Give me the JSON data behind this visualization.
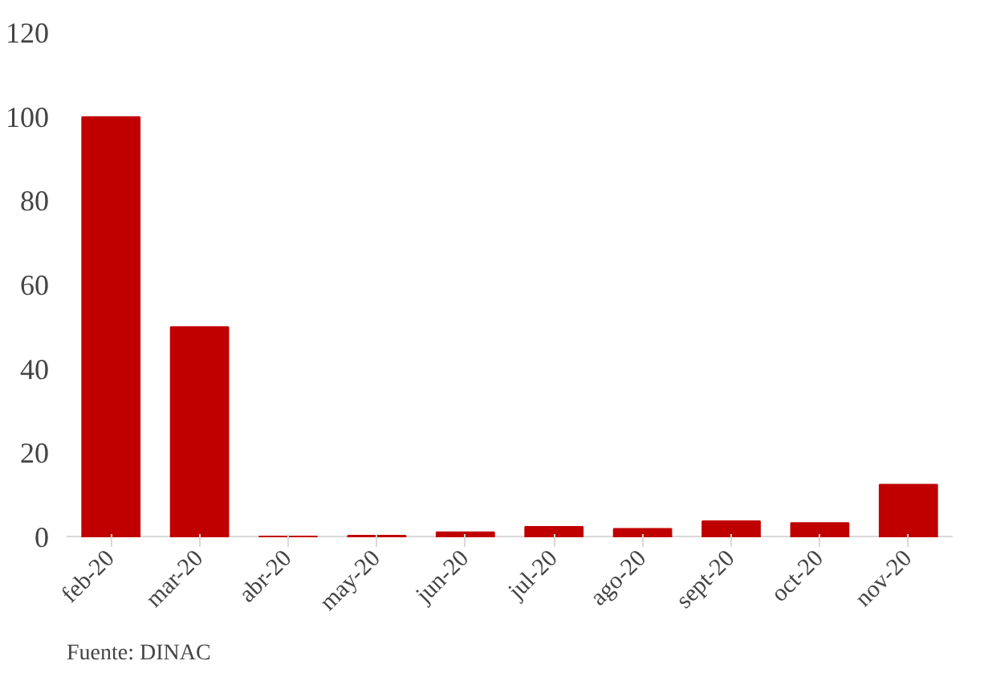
{
  "chart_data": {
    "type": "bar",
    "categories": [
      "feb-20",
      "mar-20",
      "abr-20",
      "may-20",
      "jun-20",
      "jul-20",
      "ago-20",
      "sept-20",
      "oct-20",
      "nov-20"
    ],
    "values": [
      100,
      50,
      0.2,
      0.4,
      1.2,
      2.5,
      2,
      3.8,
      3.4,
      12.5
    ],
    "color": "#c00000",
    "ylim": [
      0,
      120
    ],
    "yticks": [
      0,
      20,
      40,
      60,
      80,
      100,
      120
    ],
    "grid": false,
    "annotations": [
      "Fuente: DINAC"
    ]
  }
}
